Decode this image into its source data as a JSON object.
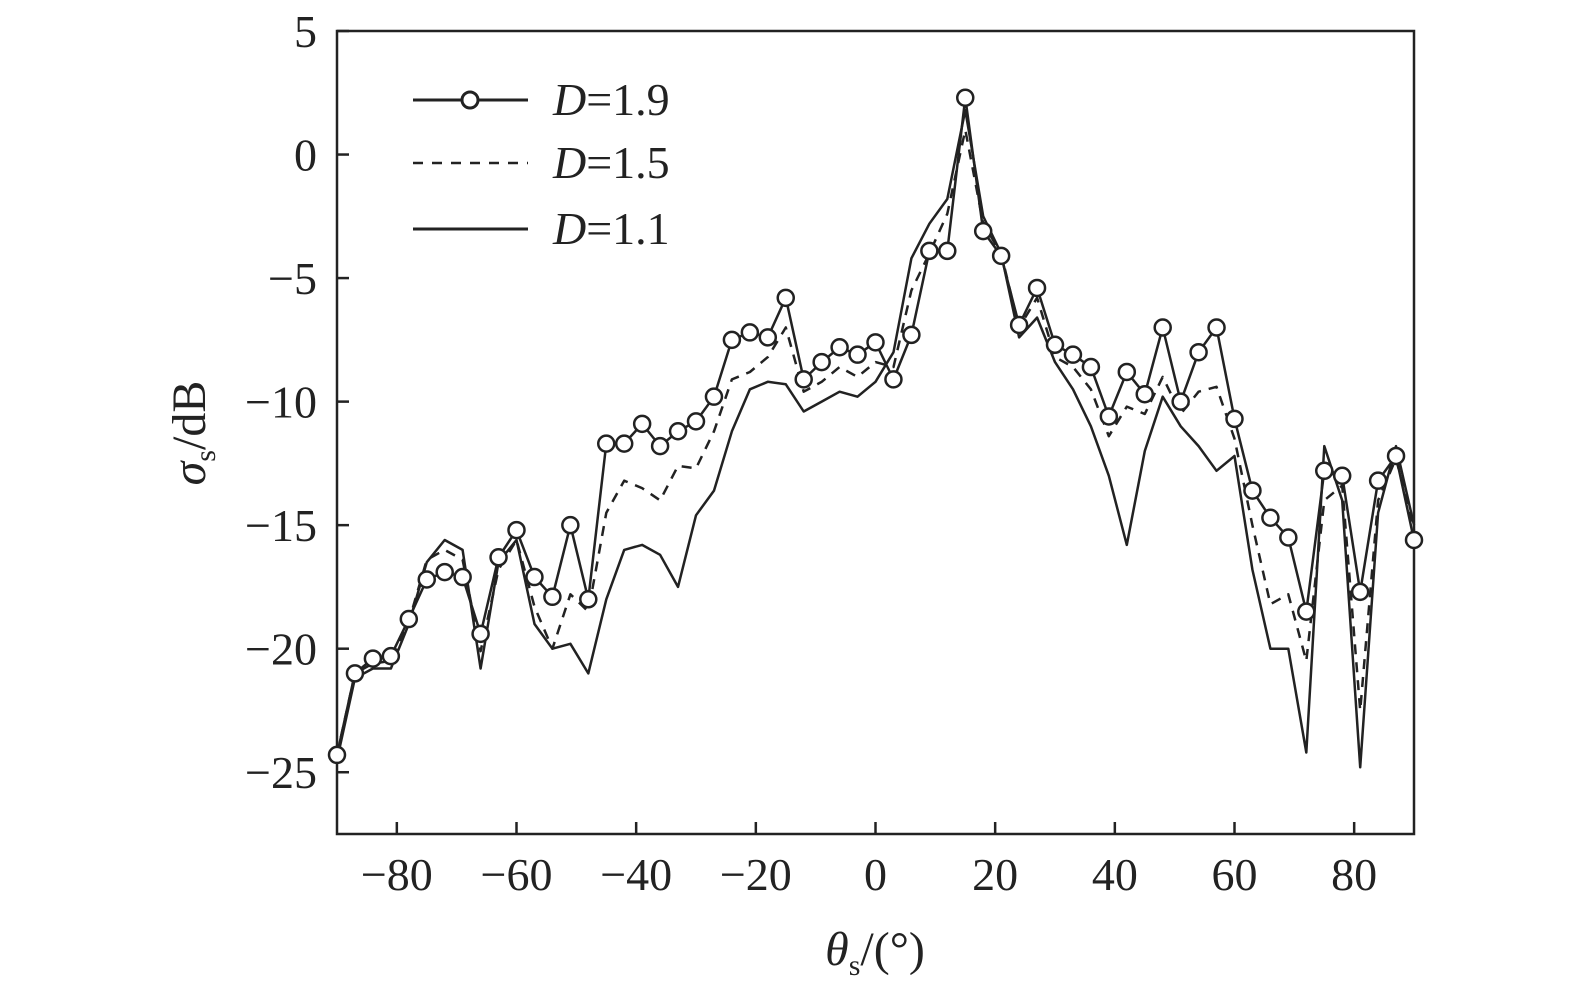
{
  "chart_data": {
    "type": "line",
    "title": "",
    "xlabel": {
      "symbol": "θ",
      "sub": "s",
      "unit": "/(°)"
    },
    "ylabel": {
      "symbol": "σ",
      "sub": "s",
      "unit": "/dB"
    },
    "xlim": [
      -90,
      90
    ],
    "ylim": [
      -27.5,
      5
    ],
    "xticks": [
      -80,
      -60,
      -40,
      -20,
      0,
      20,
      40,
      60,
      80
    ],
    "xtick_labels": [
      "−80",
      "−60",
      "−40",
      "−20",
      "0",
      "20",
      "40",
      "60",
      "80"
    ],
    "yticks": [
      5,
      0,
      -5,
      -10,
      -15,
      -20,
      -25
    ],
    "ytick_labels": [
      "5",
      "0",
      "−5",
      "−10",
      "−15",
      "−20",
      "−25"
    ],
    "grid": false,
    "legend_position": "top-left",
    "series": [
      {
        "name": "D=1.9",
        "label_var": "D",
        "label_val": "=1.9",
        "style": "solid-circle",
        "x": [
          -90,
          -87,
          -84,
          -81,
          -78,
          -75,
          -72,
          -69,
          -66,
          -63,
          -60,
          -57,
          -54,
          -51,
          -48,
          -45,
          -42,
          -39,
          -36,
          -33,
          -30,
          -27,
          -24,
          -21,
          -18,
          -15,
          -12,
          -9,
          -6,
          -3,
          0,
          3,
          6,
          9,
          12,
          15,
          18,
          21,
          24,
          27,
          30,
          33,
          36,
          39,
          42,
          45,
          48,
          51,
          54,
          57,
          60,
          63,
          66,
          69,
          72,
          75,
          78,
          81,
          84,
          87,
          90
        ],
        "y": [
          -24.3,
          -21.0,
          -20.4,
          -20.3,
          -18.8,
          -17.2,
          -16.9,
          -17.1,
          -19.4,
          -16.3,
          -15.2,
          -17.1,
          -17.9,
          -15.0,
          -18.0,
          -11.7,
          -11.7,
          -10.9,
          -11.8,
          -11.2,
          -10.8,
          -9.8,
          -7.5,
          -7.2,
          -7.4,
          -5.8,
          -9.1,
          -8.4,
          -7.8,
          -8.1,
          -7.6,
          -9.1,
          -7.3,
          -3.9,
          -3.9,
          2.3,
          -3.1,
          -4.1,
          -6.9,
          -5.4,
          -7.7,
          -8.1,
          -8.6,
          -10.6,
          -8.8,
          -9.7,
          -7.0,
          -10.0,
          -8.0,
          -7.0,
          -10.7,
          -13.6,
          -14.7,
          -15.5,
          -18.5,
          -12.8,
          -13.0,
          -17.7,
          -13.2,
          -12.2,
          -15.6
        ]
      },
      {
        "name": "D=1.5",
        "label_var": "D",
        "label_val": "=1.5",
        "style": "dashed",
        "x": [
          -90,
          -87,
          -84,
          -81,
          -78,
          -75,
          -72,
          -69,
          -66,
          -63,
          -60,
          -57,
          -54,
          -51,
          -48,
          -45,
          -42,
          -39,
          -36,
          -33,
          -30,
          -27,
          -24,
          -21,
          -18,
          -15,
          -12,
          -9,
          -6,
          -3,
          0,
          3,
          6,
          9,
          12,
          15,
          18,
          21,
          24,
          27,
          30,
          33,
          36,
          39,
          42,
          45,
          48,
          51,
          54,
          57,
          60,
          63,
          66,
          69,
          72,
          75,
          78,
          81,
          84,
          87,
          90
        ],
        "y": [
          -24.3,
          -21.0,
          -20.6,
          -20.5,
          -18.9,
          -16.4,
          -16.0,
          -16.4,
          -20.1,
          -16.8,
          -15.6,
          -18.3,
          -20.0,
          -17.8,
          -18.5,
          -14.5,
          -13.2,
          -13.5,
          -14.0,
          -12.6,
          -12.7,
          -11.2,
          -9.1,
          -8.8,
          -8.2,
          -7.0,
          -9.6,
          -9.2,
          -8.6,
          -9.0,
          -8.4,
          -8.6,
          -5.5,
          -4.0,
          -2.4,
          1.0,
          -2.8,
          -4.0,
          -7.0,
          -5.8,
          -8.2,
          -8.6,
          -9.5,
          -11.4,
          -10.2,
          -10.5,
          -9.0,
          -10.5,
          -9.6,
          -9.4,
          -11.5,
          -15.0,
          -18.2,
          -17.8,
          -20.5,
          -14.0,
          -13.4,
          -22.5,
          -14.0,
          -12.3,
          -15.2
        ]
      },
      {
        "name": "D=1.1",
        "label_var": "D",
        "label_val": "=1.1",
        "style": "solid",
        "x": [
          -90,
          -87,
          -84,
          -81,
          -78,
          -75,
          -72,
          -69,
          -66,
          -63,
          -60,
          -57,
          -54,
          -51,
          -48,
          -45,
          -42,
          -39,
          -36,
          -33,
          -30,
          -27,
          -24,
          -21,
          -18,
          -15,
          -12,
          -9,
          -6,
          -3,
          0,
          3,
          6,
          9,
          12,
          15,
          18,
          21,
          24,
          27,
          30,
          33,
          36,
          39,
          42,
          45,
          48,
          51,
          54,
          57,
          60,
          63,
          66,
          69,
          72,
          75,
          78,
          81,
          84,
          87,
          90
        ],
        "y": [
          -24.5,
          -21.2,
          -20.8,
          -20.8,
          -19.0,
          -16.5,
          -15.6,
          -16.0,
          -20.8,
          -16.5,
          -15.6,
          -19.0,
          -20.0,
          -19.8,
          -21.0,
          -18.0,
          -16.0,
          -15.8,
          -16.2,
          -17.5,
          -14.6,
          -13.6,
          -11.2,
          -9.5,
          -9.2,
          -9.3,
          -10.4,
          -10.0,
          -9.6,
          -9.8,
          -9.2,
          -8.0,
          -4.2,
          -2.8,
          -1.8,
          1.8,
          -2.5,
          -4.0,
          -7.4,
          -6.6,
          -8.4,
          -9.5,
          -11.0,
          -13.0,
          -15.8,
          -12.0,
          -9.8,
          -11.0,
          -11.8,
          -12.8,
          -12.2,
          -16.8,
          -20.0,
          -20.0,
          -24.2,
          -11.8,
          -14.0,
          -24.8,
          -14.5,
          -11.8,
          -15.0
        ]
      }
    ]
  }
}
